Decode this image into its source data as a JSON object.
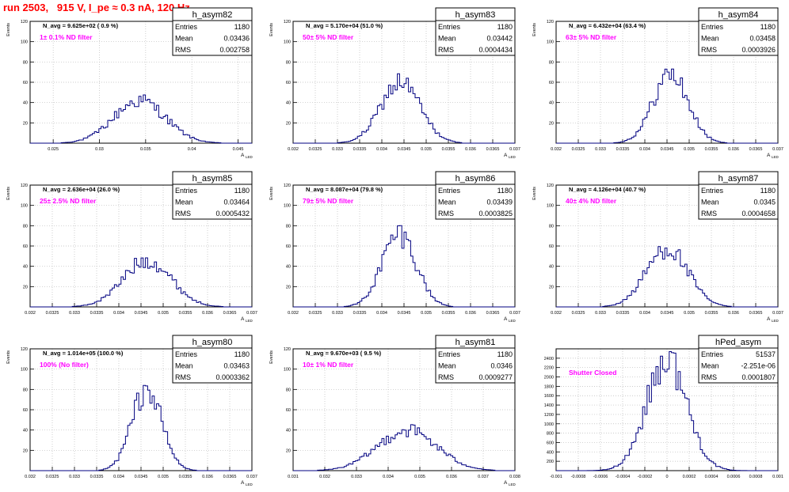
{
  "page": {
    "title": "run 2503,   915 V, I_pe ≈ 0.3 nA, 120 Hz",
    "colors": {
      "title": "#ff0000",
      "histogram": "#000080",
      "grid": "#bbbbbb",
      "filter_label": "#ff00ff"
    }
  },
  "chart_data": [
    {
      "type": "histogram",
      "name": "h_asym82",
      "stats": {
        "Entries": "1180",
        "Mean": "0.03436",
        "RMS": "0.002758"
      },
      "navg": "N_avg = 9.625e+02 ( 0.9 %)",
      "filter": "1± 0.1% ND filter",
      "xlabel": "A",
      "xlabel_sub": "LED",
      "ylabel": "Events",
      "xlim": [
        0.0225,
        0.0465
      ],
      "ylim": [
        0,
        120
      ],
      "xticks": [
        0.025,
        0.03,
        0.035,
        0.04,
        0.045
      ],
      "xticklabels": [
        "0.025",
        "0.03",
        "0.035",
        "0.04",
        "0.045"
      ],
      "yticks": [
        20,
        40,
        60,
        80,
        100,
        120
      ],
      "peak": {
        "mean": 0.03436,
        "sigma": 0.0028,
        "height": 42
      }
    },
    {
      "type": "histogram",
      "name": "h_asym83",
      "stats": {
        "Entries": "1180",
        "Mean": "0.03442",
        "RMS": "0.0004434"
      },
      "navg": "N_avg = 5.170e+04 (51.0 %)",
      "filter": "50± 5% ND filter",
      "xlabel": "A",
      "xlabel_sub": "LED",
      "ylabel": "Events",
      "xlim": [
        0.032,
        0.037
      ],
      "ylim": [
        0,
        120
      ],
      "xticks": [
        0.032,
        0.0325,
        0.033,
        0.0335,
        0.034,
        0.0345,
        0.035,
        0.0355,
        0.036,
        0.0365,
        0.037
      ],
      "xticklabels": [
        "0.032",
        "0.0325",
        "0.033",
        "0.0335",
        "0.034",
        "0.0345",
        "0.035",
        "0.0355",
        "0.036",
        "0.0365",
        "0.037"
      ],
      "yticks": [
        20,
        40,
        60,
        80,
        100,
        120
      ],
      "peak": {
        "mean": 0.03442,
        "sigma": 0.000443,
        "height": 60
      }
    },
    {
      "type": "histogram",
      "name": "h_asym84",
      "stats": {
        "Entries": "1180",
        "Mean": "0.03458",
        "RMS": "0.0003926"
      },
      "navg": "N_avg = 6.432e+04 (63.4 %)",
      "filter": "63± 5% ND filter",
      "xlabel": "A",
      "xlabel_sub": "LED",
      "ylabel": "Events",
      "xlim": [
        0.032,
        0.037
      ],
      "ylim": [
        0,
        120
      ],
      "xticks": [
        0.032,
        0.0325,
        0.033,
        0.0335,
        0.034,
        0.0345,
        0.035,
        0.0355,
        0.036,
        0.0365,
        0.037
      ],
      "xticklabels": [
        "0.032",
        "0.0325",
        "0.033",
        "0.0335",
        "0.034",
        "0.0345",
        "0.035",
        "0.0355",
        "0.036",
        "0.0365",
        "0.037"
      ],
      "yticks": [
        20,
        40,
        60,
        80,
        100,
        120
      ],
      "peak": {
        "mean": 0.03458,
        "sigma": 0.000393,
        "height": 68
      }
    },
    {
      "type": "histogram",
      "name": "h_asym85",
      "stats": {
        "Entries": "1180",
        "Mean": "0.03464",
        "RMS": "0.0005432"
      },
      "navg": "N_avg = 2.636e+04 (26.0 %)",
      "filter": "25± 2.5% ND filter",
      "xlabel": "A",
      "xlabel_sub": "LED",
      "ylabel": "Events",
      "xlim": [
        0.032,
        0.037
      ],
      "ylim": [
        0,
        120
      ],
      "xticks": [
        0.032,
        0.0325,
        0.033,
        0.0335,
        0.034,
        0.0345,
        0.035,
        0.0355,
        0.036,
        0.0365,
        0.037
      ],
      "xticklabels": [
        "0.032",
        "0.0325",
        "0.033",
        "0.0335",
        "0.034",
        "0.0345",
        "0.035",
        "0.0355",
        "0.036",
        "0.0365",
        "0.037"
      ],
      "yticks": [
        20,
        40,
        60,
        80,
        100,
        120
      ],
      "peak": {
        "mean": 0.03464,
        "sigma": 0.000543,
        "height": 46
      }
    },
    {
      "type": "histogram",
      "name": "h_asym86",
      "stats": {
        "Entries": "1180",
        "Mean": "0.03439",
        "RMS": "0.0003825"
      },
      "navg": "N_avg = 8.087e+04 (79.8 %)",
      "filter": "79± 5% ND filter",
      "xlabel": "A",
      "xlabel_sub": "LED",
      "ylabel": "Events",
      "xlim": [
        0.032,
        0.037
      ],
      "ylim": [
        0,
        120
      ],
      "xticks": [
        0.032,
        0.0325,
        0.033,
        0.0335,
        0.034,
        0.0345,
        0.035,
        0.0355,
        0.036,
        0.0365,
        0.037
      ],
      "xticklabels": [
        "0.032",
        "0.0325",
        "0.033",
        "0.0335",
        "0.034",
        "0.0345",
        "0.035",
        "0.0355",
        "0.036",
        "0.0365",
        "0.037"
      ],
      "yticks": [
        20,
        40,
        60,
        80,
        100,
        120
      ],
      "peak": {
        "mean": 0.03439,
        "sigma": 0.000383,
        "height": 72
      }
    },
    {
      "type": "histogram",
      "name": "h_asym87",
      "stats": {
        "Entries": "1180",
        "Mean": "0.0345",
        "RMS": "0.0004658"
      },
      "navg": "N_avg = 4.126e+04 (40.7 %)",
      "filter": "40± 4% ND filter",
      "xlabel": "A",
      "xlabel_sub": "LED",
      "ylabel": "Events",
      "xlim": [
        0.032,
        0.037
      ],
      "ylim": [
        0,
        120
      ],
      "xticks": [
        0.032,
        0.0325,
        0.033,
        0.0335,
        0.034,
        0.0345,
        0.035,
        0.0355,
        0.036,
        0.0365,
        0.037
      ],
      "xticklabels": [
        "0.032",
        "0.0325",
        "0.033",
        "0.0335",
        "0.034",
        "0.0345",
        "0.035",
        "0.0355",
        "0.036",
        "0.0365",
        "0.037"
      ],
      "yticks": [
        20,
        40,
        60,
        80,
        100,
        120
      ],
      "peak": {
        "mean": 0.0345,
        "sigma": 0.000466,
        "height": 58
      }
    },
    {
      "type": "histogram",
      "name": "h_asym80",
      "stats": {
        "Entries": "1180",
        "Mean": "0.03463",
        "RMS": "0.0003362"
      },
      "navg": "N_avg = 1.014e+05 (100.0 %)",
      "filter": "100% (No filter)",
      "xlabel": "A",
      "xlabel_sub": "LED",
      "ylabel": "Events",
      "xlim": [
        0.032,
        0.037
      ],
      "ylim": [
        0,
        120
      ],
      "xticks": [
        0.032,
        0.0325,
        0.033,
        0.0335,
        0.034,
        0.0345,
        0.035,
        0.0355,
        0.036,
        0.0365,
        0.037
      ],
      "xticklabels": [
        "0.032",
        "0.0325",
        "0.033",
        "0.0335",
        "0.034",
        "0.0345",
        "0.035",
        "0.0355",
        "0.036",
        "0.0365",
        "0.037"
      ],
      "yticks": [
        20,
        40,
        60,
        80,
        100,
        120
      ],
      "peak": {
        "mean": 0.03463,
        "sigma": 0.000336,
        "height": 80
      }
    },
    {
      "type": "histogram",
      "name": "h_asym81",
      "stats": {
        "Entries": "1180",
        "Mean": "0.0346",
        "RMS": "0.0009277"
      },
      "navg": "N_avg = 9.670e+03 ( 9.5 %)",
      "filter": "10± 1% ND filter",
      "xlabel": "A",
      "xlabel_sub": "LED",
      "ylabel": "Events",
      "xlim": [
        0.031,
        0.038
      ],
      "ylim": [
        0,
        120
      ],
      "xticks": [
        0.031,
        0.032,
        0.033,
        0.034,
        0.035,
        0.036,
        0.037,
        0.038
      ],
      "xticklabels": [
        "0.031",
        "0.032",
        "0.033",
        "0.034",
        "0.035",
        "0.036",
        "0.037",
        "0.038"
      ],
      "yticks": [
        20,
        40,
        60,
        80,
        100,
        120
      ],
      "peak": {
        "mean": 0.0346,
        "sigma": 0.00093,
        "height": 40
      }
    },
    {
      "type": "histogram",
      "name": "hPed_asym",
      "stats": {
        "Entries": "51537",
        "Mean": "-2.251e-06",
        "RMS": "0.0001807"
      },
      "navg": "",
      "filter": "Shutter Closed",
      "xlabel": "",
      "xlabel_sub": "",
      "ylabel": "",
      "xlim": [
        -0.001,
        0.001
      ],
      "ylim": [
        0,
        2600
      ],
      "xticks": [
        -0.001,
        -0.0008,
        -0.0006,
        -0.0004,
        -0.0002,
        0,
        0.0002,
        0.0004,
        0.0006,
        0.0008,
        0.001
      ],
      "xticklabels": [
        "-0.001",
        "-0.0008",
        "-0.0006",
        "-0.0004",
        "-0.0002",
        "0",
        "0.0002",
        "0.0004",
        "0.0006",
        "0.0008",
        "0.001"
      ],
      "yticks": [
        200,
        400,
        600,
        800,
        1000,
        1200,
        1400,
        1600,
        1800,
        2000,
        2200,
        2400
      ],
      "peak": {
        "mean": -2.3e-06,
        "sigma": 0.000181,
        "height": 2380
      }
    }
  ]
}
